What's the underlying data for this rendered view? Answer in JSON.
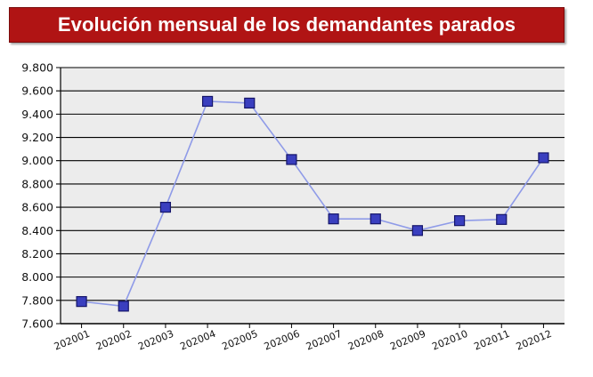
{
  "chart_data": {
    "type": "line",
    "title": "Evolución mensual de los demandantes parados",
    "xlabel": "",
    "ylabel": "",
    "categories": [
      "202001",
      "202002",
      "202003",
      "202004",
      "202005",
      "202006",
      "202007",
      "202008",
      "202009",
      "202010",
      "202011",
      "202012"
    ],
    "series": [
      {
        "values": [
          7790,
          7750,
          8600,
          9510,
          9495,
          9010,
          8500,
          8500,
          8400,
          8485,
          8495,
          9025
        ]
      }
    ],
    "ylim": [
      7600,
      9800
    ],
    "yticks": [
      7600,
      7800,
      8000,
      8200,
      8400,
      8600,
      8800,
      9000,
      9200,
      9400,
      9600,
      9800
    ],
    "ytick_labels": [
      "7.600",
      "7.800",
      "8.000",
      "8.200",
      "8.400",
      "8.600",
      "8.800",
      "9.000",
      "9.200",
      "9.400",
      "9.600",
      "9.800"
    ],
    "grid": true,
    "legend": "none",
    "colors": {
      "line": "#8f9be8",
      "marker_fill": "#3a3fbf",
      "marker_stroke": "#15156a",
      "plot_background": "#ececec",
      "gridline": "#000000",
      "title_background": "#b01414"
    }
  }
}
